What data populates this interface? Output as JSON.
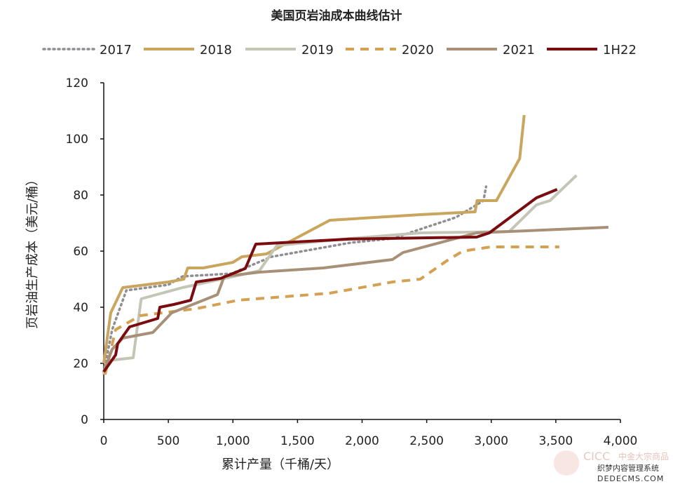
{
  "chart_data": {
    "type": "line",
    "title": "美国页岩油成本曲线估计",
    "xlabel": "累计产量（千桶/天）",
    "ylabel": "页岩油生产成本（美元/桶）",
    "xlim": [
      0,
      4000
    ],
    "ylim": [
      0,
      120
    ],
    "xticks": [
      0,
      500,
      1000,
      1500,
      2000,
      2500,
      3000,
      3500,
      4000
    ],
    "xtick_labels": [
      "0",
      "500",
      "1,000",
      "1,500",
      "2,000",
      "2,500",
      "3,000",
      "3,500",
      "4,000"
    ],
    "yticks": [
      0,
      20,
      40,
      60,
      80,
      100,
      120
    ],
    "ytick_labels": [
      "0",
      "20",
      "40",
      "60",
      "80",
      "100",
      "120"
    ],
    "grid": false,
    "legend_position": "top",
    "series": [
      {
        "name": "2017",
        "color": "#8e8e93",
        "style": "dotted",
        "points": [
          [
            0,
            17
          ],
          [
            65,
            32
          ],
          [
            175,
            46
          ],
          [
            500,
            48
          ],
          [
            610,
            51
          ],
          [
            990,
            52
          ],
          [
            1300,
            58
          ],
          [
            1910,
            63
          ],
          [
            2235,
            64.5
          ],
          [
            2725,
            72
          ],
          [
            2940,
            78
          ],
          [
            2960,
            83
          ]
        ]
      },
      {
        "name": "2018",
        "color": "#c9a55e",
        "style": "solid",
        "points": [
          [
            0,
            20
          ],
          [
            54,
            38
          ],
          [
            147,
            47
          ],
          [
            500,
            49
          ],
          [
            620,
            50
          ],
          [
            650,
            54
          ],
          [
            770,
            54
          ],
          [
            1000,
            56
          ],
          [
            1070,
            58
          ],
          [
            1260,
            59
          ],
          [
            1750,
            71
          ],
          [
            2450,
            73
          ],
          [
            2875,
            74
          ],
          [
            2890,
            78
          ],
          [
            3040,
            78
          ],
          [
            3220,
            93
          ],
          [
            3255,
            108.5
          ]
        ]
      },
      {
        "name": "2019",
        "color": "#c5c5b6",
        "style": "solid",
        "points": [
          [
            0,
            16
          ],
          [
            38,
            21
          ],
          [
            228,
            22
          ],
          [
            290,
            43
          ],
          [
            610,
            47
          ],
          [
            1205,
            53
          ],
          [
            1340,
            62
          ],
          [
            1910,
            64.5
          ],
          [
            2450,
            66.5
          ],
          [
            3140,
            67
          ],
          [
            3350,
            76.5
          ],
          [
            3455,
            78
          ],
          [
            3660,
            87
          ]
        ]
      },
      {
        "name": "2020",
        "color": "#d4a052",
        "style": "dashed",
        "points": [
          [
            10,
            16
          ],
          [
            92,
            32
          ],
          [
            282,
            37
          ],
          [
            716,
            39.5
          ],
          [
            933,
            41.5
          ],
          [
            1040,
            42.5
          ],
          [
            1747,
            45
          ],
          [
            2235,
            49
          ],
          [
            2450,
            50
          ],
          [
            2670,
            57
          ],
          [
            2780,
            60
          ],
          [
            2995,
            61.5
          ],
          [
            3527,
            61.5
          ]
        ]
      },
      {
        "name": "2021",
        "color": "#a88f78",
        "style": "solid",
        "points": [
          [
            0,
            17
          ],
          [
            65,
            25
          ],
          [
            147,
            29
          ],
          [
            380,
            31
          ],
          [
            526,
            38
          ],
          [
            880,
            44.5
          ],
          [
            933,
            51
          ],
          [
            1205,
            52.5
          ],
          [
            1700,
            54
          ],
          [
            2235,
            57
          ],
          [
            2317,
            59.5
          ],
          [
            2887,
            66.5
          ],
          [
            3907,
            68.5
          ]
        ]
      },
      {
        "name": "1H22",
        "color": "#7a0c0f",
        "style": "solid",
        "points": [
          [
            0,
            17
          ],
          [
            92,
            23
          ],
          [
            108,
            27
          ],
          [
            200,
            33
          ],
          [
            418,
            36
          ],
          [
            434,
            40
          ],
          [
            543,
            41
          ],
          [
            673,
            42.5
          ],
          [
            716,
            49
          ],
          [
            906,
            50.3
          ],
          [
            1096,
            53.8
          ],
          [
            1177,
            62.5
          ],
          [
            1910,
            64.3
          ],
          [
            2887,
            65
          ],
          [
            2985,
            66.5
          ],
          [
            3350,
            79
          ],
          [
            3510,
            82
          ]
        ]
      }
    ]
  },
  "watermark": {
    "logo_text": "CICC",
    "logo_subtitle": "中金大宗商品",
    "site_name": "织梦内容管理系统",
    "site_url": "DEDECMS.COM"
  }
}
